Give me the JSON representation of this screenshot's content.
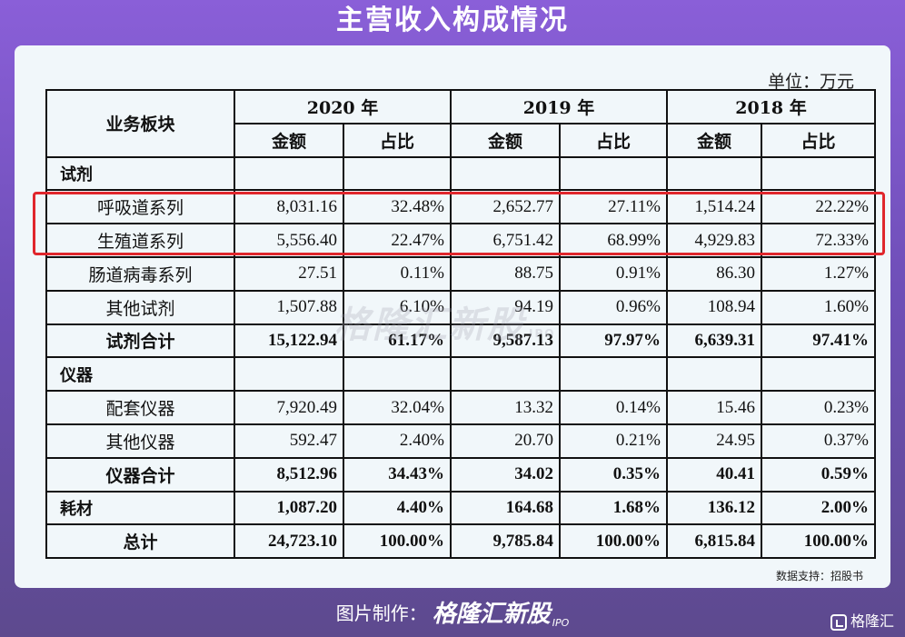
{
  "header": {
    "title": "主营收入构成情况"
  },
  "table": {
    "unit": "单位：万元",
    "col_header": "业务板块",
    "years": [
      "2020 年",
      "2019 年",
      "2018 年"
    ],
    "sub_amount": "金额",
    "sub_ratio": "占比",
    "rows": {
      "reagent": "试剂",
      "r1": [
        "呼吸道系列",
        "8,031.16",
        "32.48%",
        "2,652.77",
        "27.11%",
        "1,514.24",
        "22.22%"
      ],
      "r2": [
        "生殖道系列",
        "5,556.40",
        "22.47%",
        "6,751.42",
        "68.99%",
        "4,929.83",
        "72.33%"
      ],
      "r3": [
        "肠道病毒系列",
        "27.51",
        "0.11%",
        "88.75",
        "0.91%",
        "86.30",
        "1.27%"
      ],
      "r4": [
        "其他试剂",
        "1,507.88",
        "6.10%",
        "94.19",
        "0.96%",
        "108.94",
        "1.60%"
      ],
      "r5": [
        "试剂合计",
        "15,122.94",
        "61.17%",
        "9,587.13",
        "97.97%",
        "6,639.31",
        "97.41%"
      ],
      "instrument": "仪器",
      "r6": [
        "配套仪器",
        "7,920.49",
        "32.04%",
        "13.32",
        "0.14%",
        "15.46",
        "0.23%"
      ],
      "r7": [
        "其他仪器",
        "592.47",
        "2.40%",
        "20.70",
        "0.21%",
        "24.95",
        "0.37%"
      ],
      "r8": [
        "仪器合计",
        "8,512.96",
        "34.43%",
        "34.02",
        "0.35%",
        "40.41",
        "0.59%"
      ],
      "r9": [
        "耗材",
        "1,087.20",
        "4.40%",
        "164.68",
        "1.68%",
        "136.12",
        "2.00%"
      ],
      "r10": [
        "总计",
        "24,723.10",
        "100.00%",
        "9,785.84",
        "100.00%",
        "6,815.84",
        "100.00%"
      ]
    },
    "source": "数据支持：招股书"
  },
  "watermark": {
    "text": "格隆汇新股",
    "tag": "IPO"
  },
  "footer": {
    "made_by": "图片制作：",
    "brand": "格隆汇新股",
    "tag": "IPO",
    "corner": "格隆汇"
  },
  "colors": {
    "highlight": "#e0262c",
    "card": "#f1f7fa"
  },
  "icons": {
    "corner": "gelonghui-logo-icon"
  }
}
